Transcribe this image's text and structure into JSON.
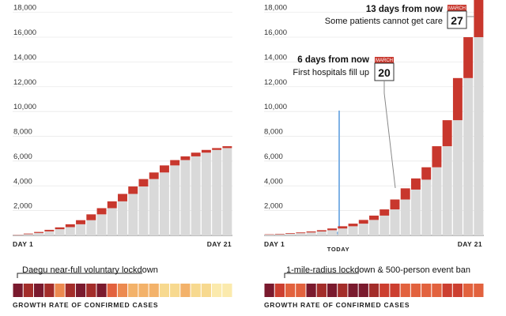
{
  "colors": {
    "base": "#d9d9d9",
    "new_cases": "#c8372d",
    "today_line": "#7fb2e5",
    "gridline": "#e6e6e6",
    "growth_scale": [
      "#7a1a2e",
      "#a32d2a",
      "#cc3f30",
      "#e2623e",
      "#ec8a50",
      "#f3b26a",
      "#f7d98f",
      "#fbeaad"
    ]
  },
  "chart_data": [
    {
      "type": "bar",
      "stacked": true,
      "panel": "left",
      "ylim": [
        0,
        19000
      ],
      "yticks": [
        "18,000",
        "16,000",
        "14,000",
        "12,000",
        "10,000",
        "8,000",
        "6,000",
        "4,000",
        "2,000"
      ],
      "ytick_values": [
        18000,
        16000,
        14000,
        12000,
        10000,
        8000,
        6000,
        4000,
        2000
      ],
      "x_start_label": "DAY 1",
      "x_end_label": "DAY 21",
      "grid": true,
      "series": [
        {
          "values": [
            30,
            100,
            200,
            330,
            500,
            670,
            900,
            1230,
            1700,
            2200,
            2750,
            3350,
            3950,
            4550,
            5080,
            5650,
            6080,
            6380,
            6680,
            6900,
            7050
          ]
        },
        {
          "values": [
            20,
            50,
            80,
            120,
            150,
            230,
            330,
            470,
            500,
            550,
            600,
            600,
            600,
            530,
            570,
            430,
            300,
            300,
            220,
            150,
            150
          ]
        }
      ],
      "growth_bar_label": "GROWTH RATE OF CONFIRMED CASES",
      "lockdown_label": "Daegu near-full voluntary lockdown",
      "growth_levels": [
        0,
        1,
        0,
        1,
        4,
        1,
        0,
        1,
        0,
        3,
        4,
        5,
        5,
        5,
        6,
        6,
        5,
        6,
        6,
        7,
        7
      ]
    },
    {
      "type": "bar",
      "stacked": true,
      "panel": "right",
      "ylim": [
        0,
        19000
      ],
      "yticks": [
        "18,000",
        "16,000",
        "14,000",
        "12,000",
        "10,000",
        "8,000",
        "6,000",
        "4,000",
        "2,000"
      ],
      "ytick_values": [
        18000,
        16000,
        14000,
        12000,
        10000,
        8000,
        6000,
        4000,
        2000
      ],
      "x_start_label": "DAY 1",
      "x_end_label": "DAY 21",
      "grid": true,
      "series": [
        {
          "values": [
            60,
            90,
            130,
            180,
            240,
            320,
            420,
            560,
            740,
            950,
            1250,
            1600,
            2100,
            2900,
            3700,
            4500,
            5500,
            7200,
            9300,
            12700,
            16000
          ]
        },
        {
          "values": [
            30,
            40,
            50,
            60,
            80,
            100,
            140,
            180,
            210,
            300,
            350,
            500,
            800,
            900,
            900,
            1000,
            1700,
            2100,
            3400,
            3300,
            3400
          ]
        }
      ],
      "growth_bar_label": "GROWTH RATE OF CONFIRMED CASES",
      "lockdown_label": "1-mile-radius lockdown & 500-person event ban",
      "growth_levels": [
        0,
        2,
        3,
        3,
        0,
        1,
        0,
        1,
        0,
        0,
        1,
        2,
        2,
        3,
        3,
        3,
        3,
        2,
        2,
        3,
        3
      ],
      "today_label": "TODAY",
      "today_index": 7,
      "annotations": [
        {
          "headline": "13 days from now",
          "text": "Some patients cannot get care",
          "month": "MARCH",
          "day": "27",
          "bar_index": 20
        },
        {
          "headline": "6 days from now",
          "text": "First hospitals fill up",
          "month": "MARCH",
          "day": "20",
          "bar_index": 13
        }
      ]
    }
  ]
}
